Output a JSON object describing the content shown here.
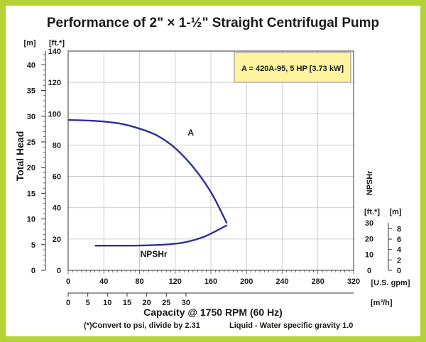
{
  "chart_data": {
    "type": "line",
    "title": "Performance of 2\" × 1-½\" Straight Centrifugal Pump",
    "ylabel": "Total Head",
    "y_units": {
      "meters": "[m]",
      "feet": "[ft.*]"
    },
    "y_ticks_ft": [
      0,
      20,
      40,
      60,
      80,
      100,
      120,
      140
    ],
    "y_ticks_m": [
      0,
      5,
      10,
      15,
      20,
      25,
      30,
      35,
      40
    ],
    "ylim_ft": [
      0,
      140
    ],
    "xlabel": "Capacity @ 1750 RPM (60 Hz)",
    "x_units": {
      "gpm": "[U.S. gpm]",
      "m3h": "[m³/h]"
    },
    "x_ticks_gpm": [
      0,
      40,
      80,
      120,
      160,
      200,
      240,
      280,
      320
    ],
    "x_ticks_m3h": [
      0,
      5,
      10,
      15,
      20,
      25,
      30
    ],
    "xlim_gpm": [
      0,
      320
    ],
    "npsh_axis": {
      "label": "NPSHr",
      "units_ft": "[ft.*]",
      "units_m": "[m]",
      "ticks_ft": [
        0,
        10,
        20,
        30
      ],
      "ticks_m": [
        0,
        2,
        4,
        6,
        8
      ],
      "lim_ft": [
        0,
        30
      ]
    },
    "series": [
      {
        "name": "A",
        "axis": "head",
        "color": "#2e3192",
        "x": [
          0,
          20,
          40,
          60,
          80,
          100,
          120,
          140,
          160,
          178
        ],
        "y": [
          96,
          95.7,
          95,
          93.5,
          90.5,
          86,
          78,
          66,
          50,
          30
        ]
      },
      {
        "name": "NPSHr",
        "axis": "npsh",
        "color": "#2e3192",
        "x": [
          30,
          50,
          70,
          90,
          110,
          130,
          150,
          165,
          178
        ],
        "y": [
          15.6,
          15.6,
          15.6,
          15.8,
          16.3,
          17.6,
          20.7,
          24.6,
          28.5
        ]
      }
    ],
    "legend_box": "A = 420A-95, 5 HP [3.73 kW]",
    "footnote_left": "(*)Convert to psi, divide by 2.31",
    "footnote_right": "Liquid - Water specific gravity 1.0",
    "colors": {
      "curve": "#2e3192",
      "legend_fill": "#fff3a0",
      "frame": "#b5d334",
      "grid": "#bfbfbf"
    }
  }
}
